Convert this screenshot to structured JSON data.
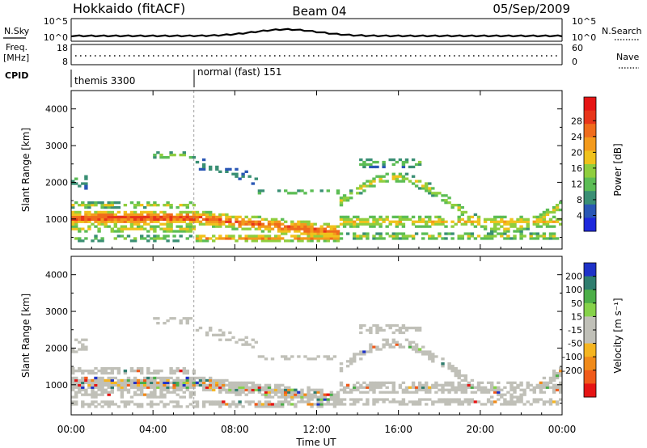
{
  "header": {
    "station": "Hokkaido (fitACF)",
    "beam": "Beam 04",
    "date": "05/Sep/2009"
  },
  "summary_panel": {
    "nsky_label": "N.Sky",
    "nsky_ticks": [
      "10^5",
      "10^0"
    ],
    "nsearch_label": "N.Search",
    "nsearch_ticks": [
      "10^5",
      "10^0"
    ],
    "freq_label_1": "Freq.",
    "freq_label_2": "[MHz]",
    "freq_ticks": [
      "18",
      "8"
    ],
    "nave_label": "Nave",
    "nave_ticks": [
      "60",
      "0"
    ],
    "cpid_label": "CPID",
    "cpid_modes": [
      {
        "name": "themis 3300",
        "start_hour": 0
      },
      {
        "name": "normal (fast) 151",
        "start_hour": 6
      }
    ]
  },
  "x_axis": {
    "title": "Time UT",
    "range_hours": [
      0,
      24
    ],
    "ticks": [
      "00:00",
      "04:00",
      "08:00",
      "12:00",
      "16:00",
      "20:00",
      "00:00"
    ]
  },
  "chart_data": [
    {
      "type": "heatmap",
      "name": "power",
      "ylabel": "Slant Range [km]",
      "yticks": [
        "1000",
        "2000",
        "3000",
        "4000"
      ],
      "ylim": [
        180,
        4500
      ],
      "colorbar_label": "Power [dB]",
      "colorbar_ticks": [
        "4",
        "8",
        "12",
        "16",
        "20",
        "24",
        "28"
      ],
      "colors": [
        "#1e28dc",
        "#2a57b5",
        "#3a8f74",
        "#5cbd55",
        "#8fce3e",
        "#f0c21c",
        "#f39a1c",
        "#f06c1c",
        "#e8351a",
        "#e61414"
      ]
    },
    {
      "type": "heatmap",
      "name": "velocity",
      "ylabel": "Slant Range [km]",
      "yticks": [
        "1000",
        "2000",
        "3000",
        "4000"
      ],
      "ylim": [
        180,
        4500
      ],
      "colorbar_label": "Velocity [m s⁻¹]",
      "colorbar_ticks": [
        "200",
        "100",
        "50",
        "15",
        "-15",
        "-50",
        "-100",
        "-200"
      ],
      "colors": [
        "#1e32c8",
        "#2f7d6e",
        "#4cae48",
        "#86d24a",
        "#c0c0b8",
        "#c0c0b8",
        "#f5b520",
        "#f08a1a",
        "#f05a1a",
        "#e61414"
      ]
    }
  ]
}
